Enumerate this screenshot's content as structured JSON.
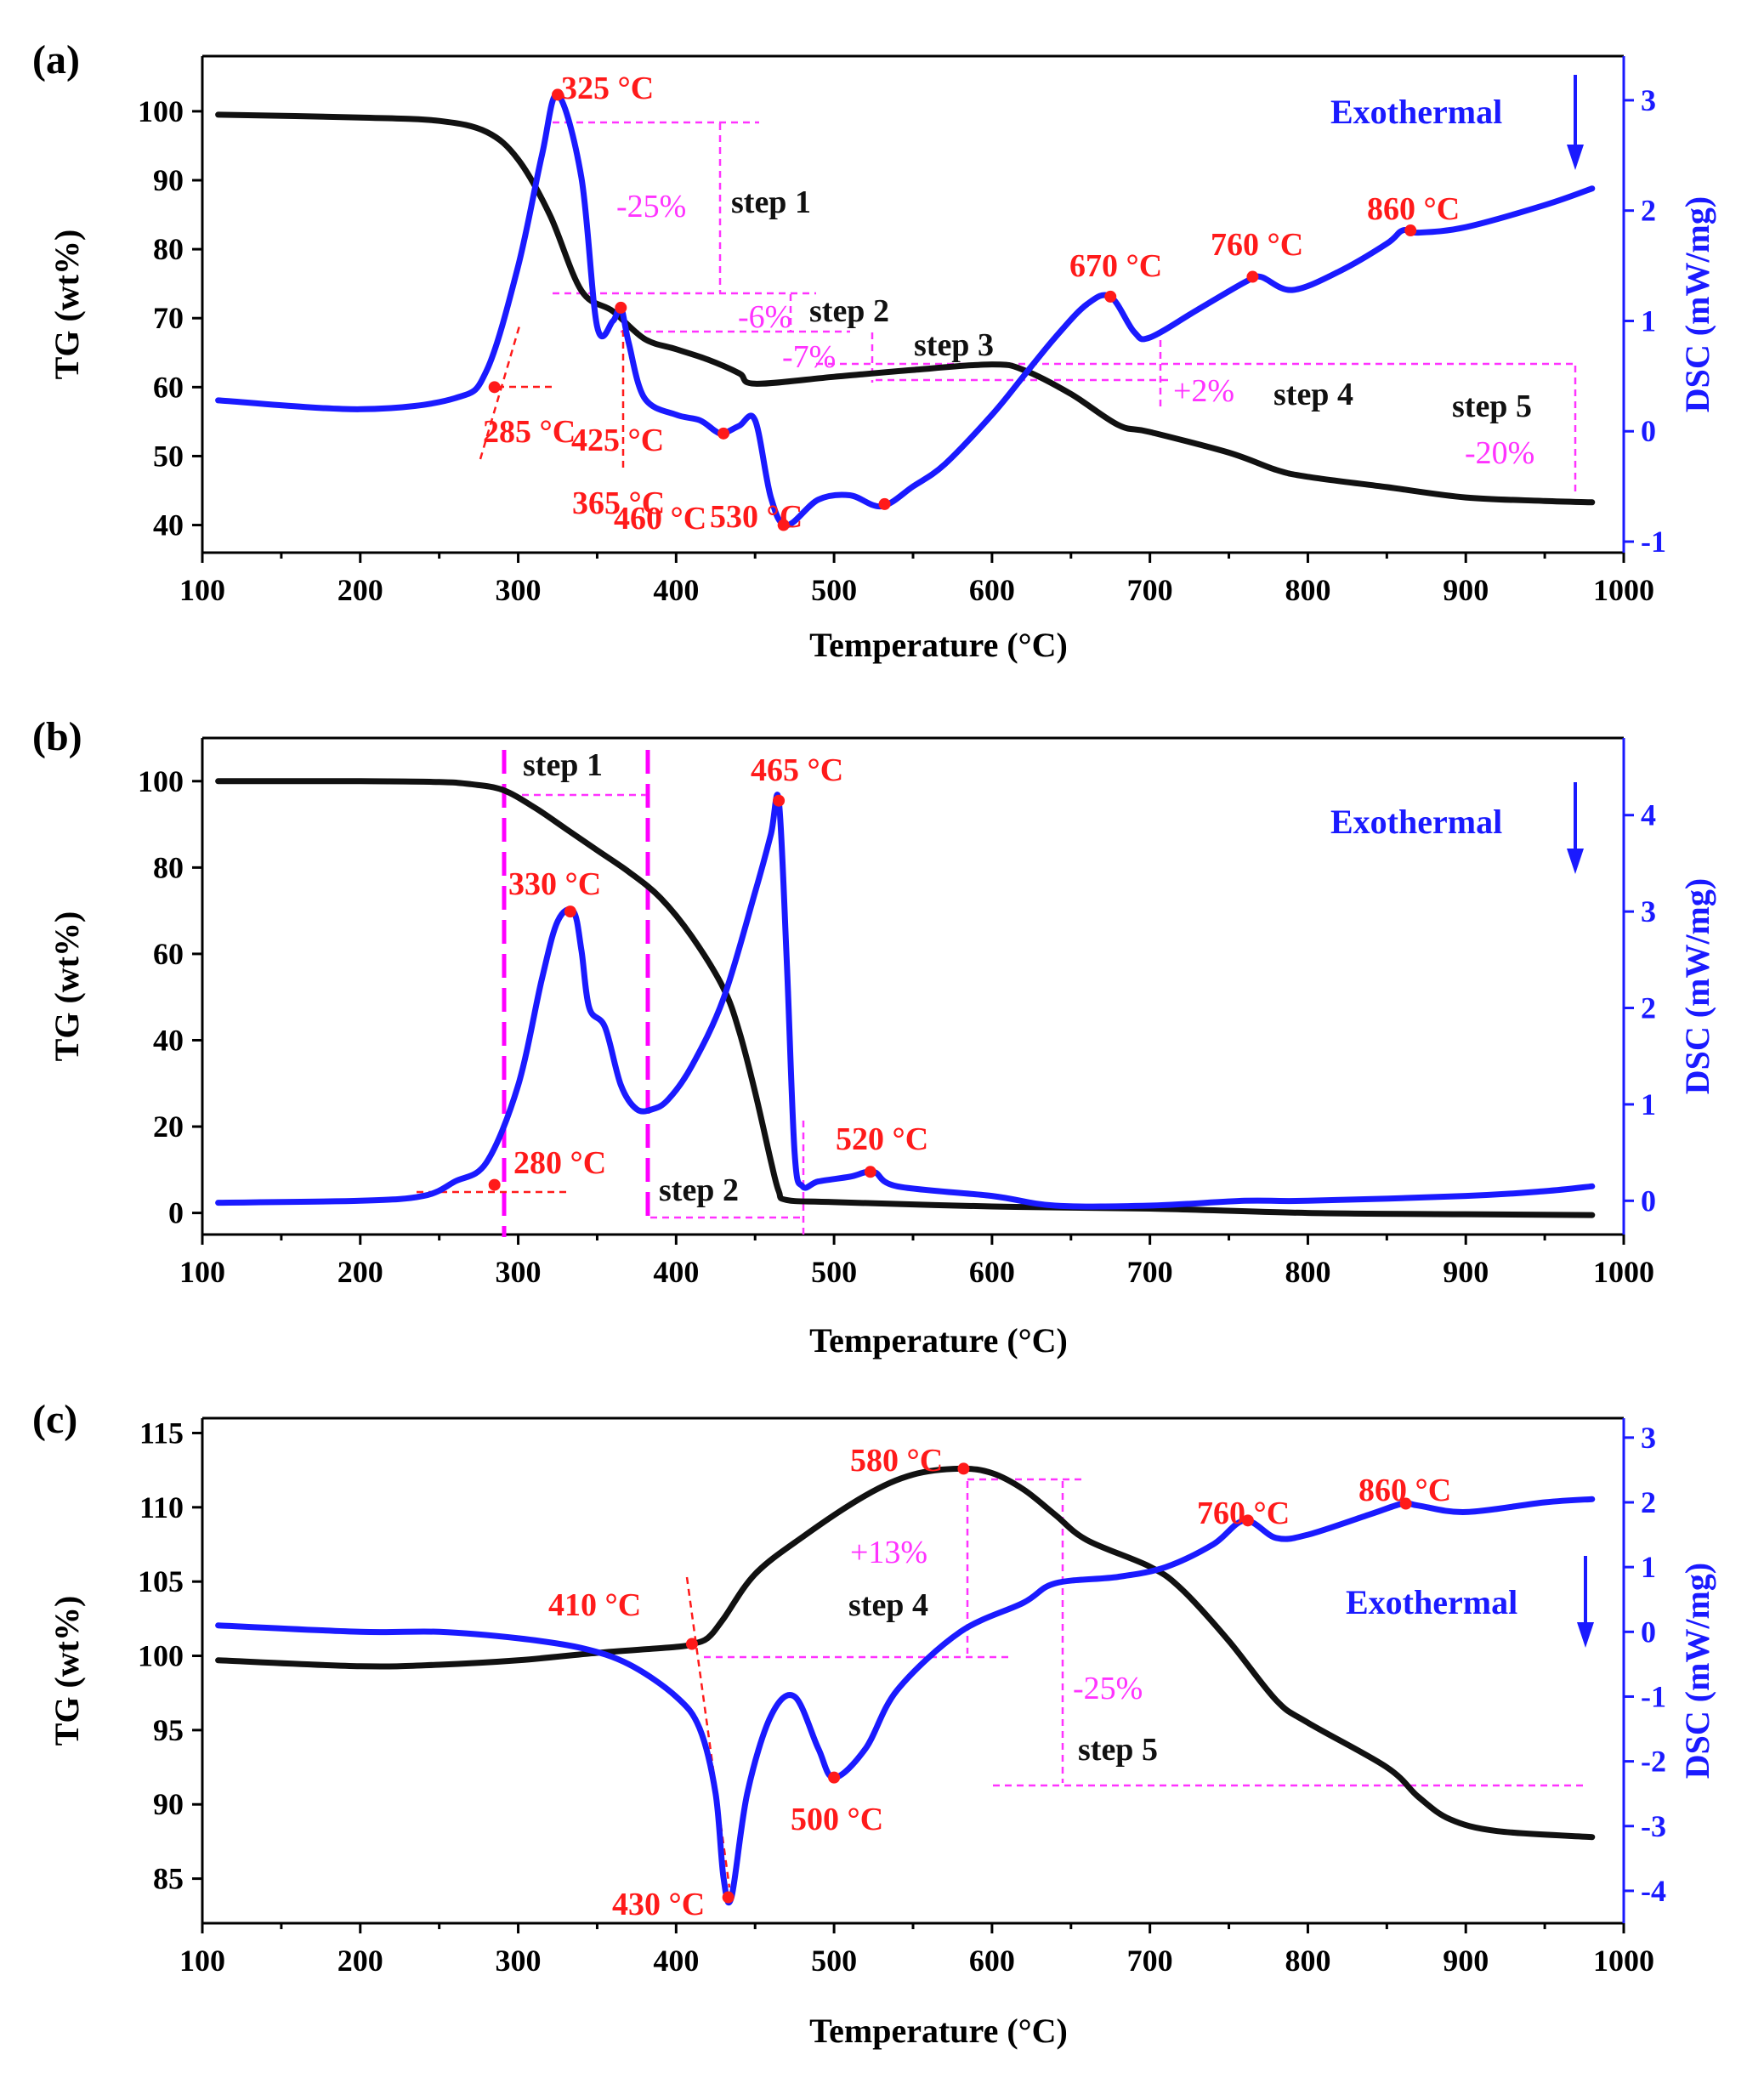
{
  "colors": {
    "tg": "#111111",
    "dsc": "#1a1aff",
    "peak": "#ff1a1a",
    "guide": "#ff33ff"
  },
  "chart_data": [
    {
      "panel": "(a)",
      "type": "line",
      "xlabel": "Temperature (°C)",
      "ylabel_left": "TG (wt%)",
      "ylabel_right": "DSC (mW/mg)",
      "xlim": [
        100,
        1000
      ],
      "ylim_left": [
        36,
        108
      ],
      "ylim_right": [
        -1.1,
        3.4
      ],
      "x_ticks": [
        100,
        200,
        300,
        400,
        500,
        600,
        700,
        800,
        900,
        1000
      ],
      "y_ticks_left": [
        40,
        50,
        60,
        70,
        80,
        90,
        100
      ],
      "y_ticks_right": [
        -1,
        0,
        1,
        2,
        3
      ],
      "exothermal_label": "Exothermal",
      "series": [
        {
          "name": "TG",
          "axis": "left",
          "x": [
            110,
            200,
            250,
            280,
            300,
            320,
            340,
            360,
            380,
            400,
            420,
            440,
            450,
            500,
            550,
            600,
            620,
            650,
            680,
            700,
            750,
            780,
            800,
            850,
            900,
            950,
            980
          ],
          "values": [
            99.5,
            99.1,
            98.6,
            97,
            93,
            85,
            74,
            71,
            67,
            65.5,
            64,
            62,
            60.5,
            61.5,
            62.5,
            63.3,
            62.5,
            59,
            54.5,
            53.5,
            50.5,
            48,
            47,
            45.5,
            44,
            43.5,
            43.3
          ]
        },
        {
          "name": "DSC",
          "axis": "right",
          "x": [
            110,
            200,
            260,
            280,
            300,
            315,
            325,
            340,
            350,
            360,
            365,
            370,
            380,
            400,
            415,
            425,
            430,
            440,
            450,
            460,
            470,
            490,
            510,
            530,
            550,
            570,
            600,
            620,
            640,
            660,
            675,
            690,
            700,
            730,
            760,
            770,
            790,
            820,
            850,
            860,
            870,
            900,
            950,
            980
          ],
          "values": [
            0.28,
            0.2,
            0.3,
            0.55,
            1.5,
            2.5,
            3.05,
            2.3,
            0.95,
            1.0,
            1.12,
            0.8,
            0.3,
            0.15,
            0.1,
            0.0,
            -0.02,
            0.05,
            0.1,
            -0.6,
            -0.85,
            -0.62,
            -0.58,
            -0.68,
            -0.5,
            -0.3,
            0.15,
            0.5,
            0.85,
            1.15,
            1.22,
            0.9,
            0.85,
            1.1,
            1.35,
            1.4,
            1.28,
            1.45,
            1.7,
            1.82,
            1.8,
            1.85,
            2.05,
            2.2
          ]
        }
      ],
      "peaks": [
        {
          "label": "325 °C",
          "x": 325,
          "axis": "right",
          "y": 3.05
        },
        {
          "label": "365 °C",
          "x": 365,
          "axis": "right",
          "y": 1.12
        },
        {
          "label": "425 °C",
          "x": 430,
          "axis": "right",
          "y": -0.02
        },
        {
          "label": "460 °C",
          "x": 468,
          "axis": "right",
          "y": -0.85
        },
        {
          "label": "530 °C",
          "x": 532,
          "axis": "right",
          "y": -0.66
        },
        {
          "label": "670 °C",
          "x": 675,
          "axis": "right",
          "y": 1.22
        },
        {
          "label": "760 °C",
          "x": 765,
          "axis": "right",
          "y": 1.4
        },
        {
          "label": "860 °C",
          "x": 865,
          "axis": "right",
          "y": 1.82
        },
        {
          "label": "285 °C",
          "x": 285,
          "axis": "left",
          "y": 60
        }
      ],
      "annotations": [
        {
          "step": "step 1",
          "pct": "-25%"
        },
        {
          "step": "step 2",
          "pct": "-6%"
        },
        {
          "step": "step 3",
          "pct": "-7%"
        },
        {
          "step": "step 4",
          "pct": "+2%"
        },
        {
          "step": "step 5",
          "pct": "-20%"
        }
      ]
    },
    {
      "panel": "(b)",
      "type": "line",
      "xlabel": "Temperature (°C)",
      "ylabel_left": "TG (wt%)",
      "ylabel_right": "DSC (mW/mg)",
      "xlim": [
        100,
        1000
      ],
      "ylim_left": [
        -5,
        110
      ],
      "ylim_right": [
        -0.35,
        4.8
      ],
      "x_ticks": [
        100,
        200,
        300,
        400,
        500,
        600,
        700,
        800,
        900,
        1000
      ],
      "y_ticks_left": [
        0,
        20,
        40,
        60,
        80,
        100
      ],
      "y_ticks_right": [
        0,
        1,
        2,
        3,
        4
      ],
      "exothermal_label": "Exothermal",
      "series": [
        {
          "name": "TG",
          "axis": "left",
          "x": [
            110,
            200,
            250,
            270,
            290,
            310,
            330,
            350,
            370,
            390,
            410,
            430,
            440,
            450,
            460,
            465,
            470,
            500,
            600,
            700,
            800,
            900,
            980
          ],
          "values": [
            100,
            100,
            99.8,
            99.3,
            98,
            94,
            89,
            84,
            79,
            73,
            64,
            52,
            42,
            28,
            12,
            5,
            3,
            2.5,
            1.5,
            1,
            0,
            -0.3,
            -0.5
          ]
        },
        {
          "name": "DSC",
          "axis": "right",
          "x": [
            110,
            200,
            240,
            260,
            280,
            300,
            315,
            325,
            335,
            340,
            345,
            355,
            365,
            375,
            385,
            395,
            410,
            430,
            450,
            460,
            465,
            470,
            475,
            480,
            490,
            510,
            525,
            540,
            600,
            640,
            700,
            760,
            800,
            900,
            950,
            980
          ],
          "values": [
            -0.02,
            0.0,
            0.05,
            0.2,
            0.4,
            1.2,
            2.3,
            2.9,
            3.0,
            2.6,
            2.0,
            1.8,
            1.2,
            0.95,
            0.95,
            1.05,
            1.4,
            2.1,
            3.2,
            3.8,
            4.15,
            2.5,
            0.5,
            0.15,
            0.2,
            0.25,
            0.3,
            0.15,
            0.05,
            -0.05,
            -0.05,
            0.0,
            0.0,
            0.05,
            0.1,
            0.15
          ]
        }
      ],
      "peaks": [
        {
          "label": "465 °C",
          "x": 465,
          "axis": "right",
          "y": 4.15
        },
        {
          "label": "330 °C",
          "x": 333,
          "axis": "right",
          "y": 3.0
        },
        {
          "label": "520 °C",
          "x": 523,
          "axis": "right",
          "y": 0.3
        },
        {
          "label": "280 °C",
          "x": 285,
          "axis": "left",
          "y": 6.5
        }
      ],
      "annotations": [
        {
          "step": "step 1",
          "pct": ""
        },
        {
          "step": "step 2",
          "pct": ""
        }
      ]
    },
    {
      "panel": "(c)",
      "type": "line",
      "xlabel": "Temperature (°C)",
      "ylabel_left": "TG (wt%)",
      "ylabel_right": "DSC (mW/mg)",
      "xlim": [
        100,
        1000
      ],
      "ylim_left": [
        82,
        116
      ],
      "ylim_right": [
        -4.5,
        3.3
      ],
      "x_ticks": [
        100,
        200,
        300,
        400,
        500,
        600,
        700,
        800,
        900,
        1000
      ],
      "y_ticks_left": [
        85,
        90,
        95,
        100,
        105,
        110,
        115
      ],
      "y_ticks_right": [
        -4,
        -3,
        -2,
        -1,
        0,
        1,
        2,
        3
      ],
      "exothermal_label": "Exothermal",
      "series": [
        {
          "name": "TG",
          "axis": "left",
          "x": [
            110,
            200,
            250,
            300,
            350,
            400,
            410,
            420,
            430,
            450,
            480,
            520,
            550,
            580,
            600,
            620,
            640,
            660,
            700,
            720,
            750,
            780,
            800,
            850,
            870,
            890,
            920,
            980
          ],
          "values": [
            99.7,
            99.3,
            99.4,
            99.7,
            100.2,
            100.6,
            100.8,
            101.2,
            102.5,
            105.5,
            108,
            110.8,
            112.2,
            112.6,
            112.3,
            111.2,
            109.5,
            107.8,
            106,
            104.5,
            101,
            97,
            95.5,
            92.5,
            90.5,
            89,
            88.2,
            87.8
          ]
        },
        {
          "name": "DSC",
          "axis": "right",
          "x": [
            110,
            200,
            250,
            300,
            340,
            370,
            400,
            415,
            425,
            430,
            435,
            445,
            460,
            475,
            490,
            500,
            520,
            540,
            580,
            620,
            640,
            680,
            710,
            740,
            760,
            780,
            800,
            840,
            860,
            870,
            900,
            950,
            980
          ],
          "values": [
            0.1,
            0.0,
            0.0,
            -0.1,
            -0.25,
            -0.5,
            -1.0,
            -1.5,
            -2.5,
            -3.8,
            -4.1,
            -2.5,
            -1.3,
            -1.0,
            -1.8,
            -2.25,
            -1.8,
            -0.9,
            0.0,
            0.45,
            0.75,
            0.85,
            1.0,
            1.35,
            1.72,
            1.45,
            1.5,
            1.82,
            1.98,
            1.95,
            1.85,
            2.0,
            2.05
          ]
        }
      ],
      "peaks": [
        {
          "label": "580 °C",
          "x": 582,
          "axis": "left",
          "y": 112.6
        },
        {
          "label": "410 °C",
          "x": 410,
          "axis": "left",
          "y": 100.8
        },
        {
          "label": "430 °C",
          "x": 433,
          "axis": "right",
          "y": -4.1
        },
        {
          "label": "500 °C",
          "x": 500,
          "axis": "right",
          "y": -2.25
        },
        {
          "label": "760 °C",
          "x": 762,
          "axis": "right",
          "y": 1.72
        },
        {
          "label": "860 °C",
          "x": 862,
          "axis": "right",
          "y": 1.98
        }
      ],
      "annotations": [
        {
          "step": "step 4",
          "pct": "+13%"
        },
        {
          "step": "step 5",
          "pct": "-25%"
        }
      ]
    }
  ]
}
